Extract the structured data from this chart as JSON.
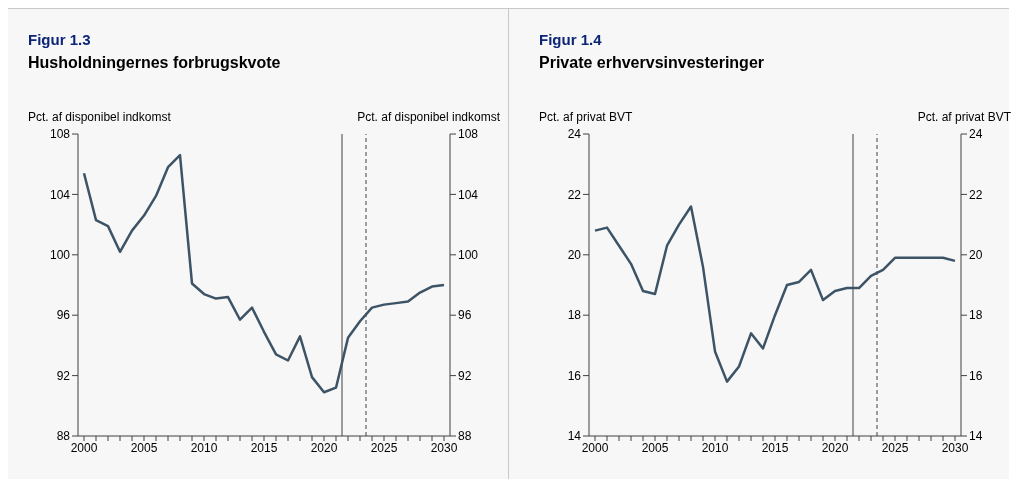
{
  "chart_data": [
    {
      "type": "line",
      "title": "Figur 1.3",
      "subtitle": "Husholdningernes forbrugskvote",
      "ylabel": "Pct. af disponibel indkomst",
      "y2label": "Pct. af disponibel indkomst",
      "x": [
        2000,
        2001,
        2002,
        2003,
        2004,
        2005,
        2006,
        2007,
        2008,
        2009,
        2010,
        2011,
        2012,
        2013,
        2014,
        2015,
        2016,
        2017,
        2018,
        2019,
        2020,
        2021,
        2022,
        2023,
        2024,
        2025,
        2026,
        2027,
        2028,
        2029,
        2030
      ],
      "series": [
        {
          "color": "#3d5366",
          "values": [
            105.4,
            102.3,
            101.9,
            100.2,
            101.6,
            102.6,
            103.9,
            105.8,
            106.6,
            98.1,
            97.4,
            97.1,
            97.2,
            95.7,
            96.5,
            94.9,
            93.4,
            93.0,
            94.6,
            91.9,
            90.9,
            91.2,
            94.5,
            95.6,
            96.5,
            96.7,
            96.8,
            96.9,
            97.5,
            97.9,
            98.0
          ]
        }
      ],
      "xlim": [
        1999.5,
        2030.5
      ],
      "xticks": [
        2000,
        {
          "value": 2001,
          "label": null
        },
        {
          "value": 2002,
          "label": null
        },
        {
          "value": 2003,
          "label": null
        },
        {
          "value": 2004,
          "label": null
        },
        2005,
        {
          "value": 2006,
          "label": null
        },
        {
          "value": 2007,
          "label": null
        },
        {
          "value": 2008,
          "label": null
        },
        {
          "value": 2009,
          "label": null
        },
        2010,
        {
          "value": 2011,
          "label": null
        },
        {
          "value": 2012,
          "label": null
        },
        {
          "value": 2013,
          "label": null
        },
        {
          "value": 2014,
          "label": null
        },
        2015,
        {
          "value": 2016,
          "label": null
        },
        {
          "value": 2017,
          "label": null
        },
        {
          "value": 2018,
          "label": null
        },
        {
          "value": 2019,
          "label": null
        },
        2020,
        {
          "value": 2021,
          "label": null
        },
        {
          "value": 2022,
          "label": null
        },
        {
          "value": 2023,
          "label": null
        },
        {
          "value": 2024,
          "label": null
        },
        2025,
        {
          "value": 2026,
          "label": null
        },
        {
          "value": 2027,
          "label": null
        },
        {
          "value": 2028,
          "label": null
        },
        {
          "value": 2029,
          "label": null
        },
        2030
      ],
      "ylim": [
        88,
        108
      ],
      "yticks": [
        88,
        92,
        96,
        100,
        104,
        108
      ],
      "y2lim": [
        88,
        108
      ],
      "y2ticks": [
        88,
        92,
        96,
        100,
        104,
        108
      ],
      "ref_lines": [
        {
          "axis": "x",
          "value": 2021.5,
          "color": "#404040",
          "line_style": "solid"
        },
        {
          "axis": "x",
          "value": 2023.5,
          "color": "#404040",
          "line_style": "dashed"
        }
      ]
    },
    {
      "type": "line",
      "title": "Figur 1.4",
      "subtitle": "Private erhvervsinvesteringer",
      "ylabel": "Pct. af privat BVT",
      "y2label": "Pct. af privat BVT",
      "x": [
        2000,
        2001,
        2002,
        2003,
        2004,
        2005,
        2006,
        2007,
        2008,
        2009,
        2010,
        2011,
        2012,
        2013,
        2014,
        2015,
        2016,
        2017,
        2018,
        2019,
        2020,
        2021,
        2022,
        2023,
        2024,
        2025,
        2026,
        2027,
        2028,
        2029,
        2030
      ],
      "series": [
        {
          "color": "#3d5366",
          "values": [
            20.8,
            20.9,
            20.3,
            19.7,
            18.8,
            18.7,
            20.3,
            21.0,
            21.6,
            19.6,
            16.8,
            15.8,
            16.3,
            17.4,
            16.9,
            18.0,
            19.0,
            19.1,
            19.5,
            18.5,
            18.8,
            18.9,
            18.9,
            19.3,
            19.5,
            19.9,
            19.9,
            19.9,
            19.9,
            19.9,
            19.8
          ]
        }
      ],
      "xlim": [
        1999.5,
        2030.5
      ],
      "xticks": [
        2000,
        {
          "value": 2001,
          "label": null
        },
        {
          "value": 2002,
          "label": null
        },
        {
          "value": 2003,
          "label": null
        },
        {
          "value": 2004,
          "label": null
        },
        2005,
        {
          "value": 2006,
          "label": null
        },
        {
          "value": 2007,
          "label": null
        },
        {
          "value": 2008,
          "label": null
        },
        {
          "value": 2009,
          "label": null
        },
        2010,
        {
          "value": 2011,
          "label": null
        },
        {
          "value": 2012,
          "label": null
        },
        {
          "value": 2013,
          "label": null
        },
        {
          "value": 2014,
          "label": null
        },
        2015,
        {
          "value": 2016,
          "label": null
        },
        {
          "value": 2017,
          "label": null
        },
        {
          "value": 2018,
          "label": null
        },
        {
          "value": 2019,
          "label": null
        },
        2020,
        {
          "value": 2021,
          "label": null
        },
        {
          "value": 2022,
          "label": null
        },
        {
          "value": 2023,
          "label": null
        },
        {
          "value": 2024,
          "label": null
        },
        2025,
        {
          "value": 2026,
          "label": null
        },
        {
          "value": 2027,
          "label": null
        },
        {
          "value": 2028,
          "label": null
        },
        {
          "value": 2029,
          "label": null
        },
        2030
      ],
      "ylim": [
        14,
        24
      ],
      "yticks": [
        14,
        16,
        18,
        20,
        22,
        24
      ],
      "y2lim": [
        14,
        24
      ],
      "y2ticks": [
        14,
        16,
        18,
        20,
        22,
        24
      ],
      "ref_lines": [
        {
          "axis": "x",
          "value": 2021.5,
          "color": "#404040",
          "line_style": "solid"
        },
        {
          "axis": "x",
          "value": 2023.5,
          "color": "#404040",
          "line_style": "dashed"
        }
      ]
    }
  ]
}
